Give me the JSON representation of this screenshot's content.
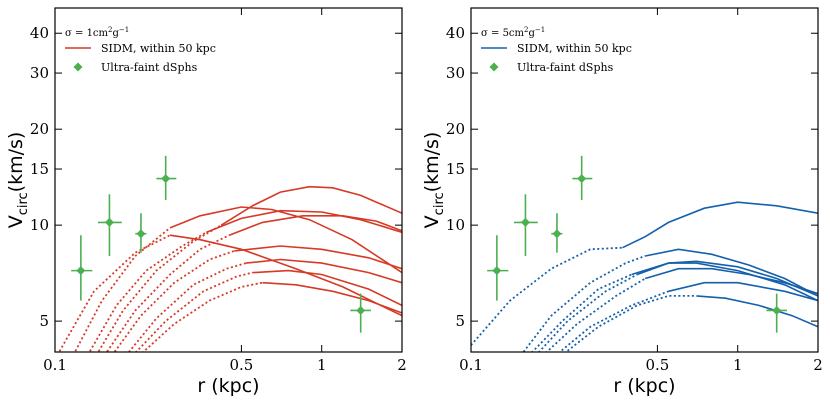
{
  "chart_data": [
    {
      "type": "line",
      "panel": "left",
      "xscale": "log",
      "yscale": "log",
      "xlim": [
        0.1,
        2
      ],
      "ylim": [
        4.0,
        48
      ],
      "xticks": [
        0.1,
        0.5,
        1,
        2
      ],
      "xtick_labels": [
        "0.1",
        "0.5",
        "1",
        "2"
      ],
      "yticks": [
        5,
        10,
        15,
        20,
        30,
        40
      ],
      "ytick_labels": [
        "5",
        "10",
        "15",
        "20",
        "30",
        "40"
      ],
      "xlabel": "r (kpc)",
      "ylabel_main": "V",
      "ylabel_sub": "circ",
      "ylabel_tail": "(km/s)",
      "legend_title_prefix": "σ = 1cm",
      "legend_title_sup1": "2",
      "legend_title_mid": "g",
      "legend_title_sup2": "−1",
      "line_color": "#d63a26",
      "point_color": "#4caf50",
      "legend": [
        {
          "label": "SIDM, within 50 kpc",
          "kind": "line"
        },
        {
          "label": "Ultra-faint dSphs",
          "kind": "marker"
        }
      ],
      "series": [
        {
          "name": "curve-1",
          "dotted": [
            [
              0.1,
              3.8
            ],
            [
              0.14,
              6.2
            ],
            [
              0.2,
              8.2
            ],
            [
              0.27,
              9.3
            ]
          ],
          "solid": [
            [
              0.27,
              9.3
            ],
            [
              0.35,
              9.0
            ],
            [
              0.5,
              8.4
            ],
            [
              0.8,
              7.3
            ],
            [
              1.2,
              6.4
            ],
            [
              2.0,
              5.2
            ]
          ]
        },
        {
          "name": "curve-2",
          "dotted": [
            [
              0.115,
              3.8
            ],
            [
              0.15,
              5.8
            ],
            [
              0.2,
              8.0
            ],
            [
              0.27,
              9.8
            ]
          ],
          "solid": [
            [
              0.27,
              9.8
            ],
            [
              0.35,
              10.7
            ],
            [
              0.5,
              11.4
            ],
            [
              0.65,
              11.2
            ],
            [
              0.9,
              10.4
            ],
            [
              1.3,
              9.0
            ],
            [
              2.0,
              7.1
            ]
          ]
        },
        {
          "name": "curve-3",
          "dotted": [
            [
              0.13,
              3.8
            ],
            [
              0.17,
              5.6
            ],
            [
              0.22,
              7.2
            ],
            [
              0.3,
              8.6
            ],
            [
              0.37,
              9.5
            ]
          ],
          "solid": [
            [
              0.37,
              9.5
            ],
            [
              0.5,
              10.5
            ],
            [
              0.7,
              11.1
            ],
            [
              1.0,
              11.0
            ],
            [
              1.4,
              10.4
            ],
            [
              2.0,
              9.5
            ]
          ]
        },
        {
          "name": "curve-4",
          "dotted": [
            [
              0.14,
              3.8
            ],
            [
              0.18,
              5.4
            ],
            [
              0.24,
              7.2
            ],
            [
              0.33,
              8.9
            ],
            [
              0.42,
              10.0
            ]
          ],
          "solid": [
            [
              0.42,
              10.0
            ],
            [
              0.55,
              11.5
            ],
            [
              0.7,
              12.7
            ],
            [
              0.9,
              13.2
            ],
            [
              1.1,
              13.1
            ],
            [
              1.4,
              12.4
            ],
            [
              2.0,
              10.9
            ]
          ]
        },
        {
          "name": "curve-5",
          "dotted": [
            [
              0.15,
              3.8
            ],
            [
              0.2,
              5.4
            ],
            [
              0.27,
              7.0
            ],
            [
              0.35,
              8.4
            ],
            [
              0.45,
              9.3
            ]
          ],
          "solid": [
            [
              0.45,
              9.3
            ],
            [
              0.6,
              10.2
            ],
            [
              0.85,
              10.7
            ],
            [
              1.2,
              10.7
            ],
            [
              1.6,
              10.3
            ],
            [
              2.0,
              9.6
            ]
          ]
        },
        {
          "name": "curve-6",
          "dotted": [
            [
              0.16,
              3.8
            ],
            [
              0.21,
              5.2
            ],
            [
              0.28,
              6.6
            ],
            [
              0.38,
              7.8
            ],
            [
              0.47,
              8.3
            ]
          ],
          "solid": [
            [
              0.47,
              8.3
            ],
            [
              0.7,
              8.6
            ],
            [
              1.0,
              8.4
            ],
            [
              1.5,
              7.9
            ],
            [
              2.0,
              7.3
            ]
          ]
        },
        {
          "name": "curve-7",
          "dotted": [
            [
              0.18,
              3.8
            ],
            [
              0.24,
              5.1
            ],
            [
              0.33,
              6.5
            ],
            [
              0.44,
              7.3
            ],
            [
              0.52,
              7.6
            ]
          ],
          "solid": [
            [
              0.52,
              7.6
            ],
            [
              0.7,
              7.8
            ],
            [
              1.0,
              7.6
            ],
            [
              1.5,
              7.1
            ],
            [
              2.0,
              6.6
            ]
          ]
        },
        {
          "name": "curve-8",
          "dotted": [
            [
              0.19,
              3.8
            ],
            [
              0.26,
              5.0
            ],
            [
              0.36,
              6.2
            ],
            [
              0.48,
              6.9
            ],
            [
              0.55,
              7.1
            ]
          ],
          "solid": [
            [
              0.55,
              7.1
            ],
            [
              0.75,
              7.2
            ],
            [
              1.0,
              7.0
            ],
            [
              1.5,
              6.3
            ],
            [
              2.0,
              5.6
            ]
          ]
        },
        {
          "name": "curve-9",
          "dotted": [
            [
              0.2,
              3.8
            ],
            [
              0.28,
              4.9
            ],
            [
              0.38,
              5.8
            ],
            [
              0.5,
              6.4
            ],
            [
              0.6,
              6.6
            ]
          ],
          "solid": [
            [
              0.6,
              6.6
            ],
            [
              0.8,
              6.5
            ],
            [
              1.1,
              6.2
            ],
            [
              1.5,
              5.8
            ],
            [
              2.0,
              5.3
            ]
          ]
        }
      ],
      "points": [
        {
          "name": "dsph-1",
          "r": 0.125,
          "v": 7.2,
          "v_lo": 5.8,
          "v_hi": 9.3,
          "r_lo": 0.115,
          "r_hi": 0.138
        },
        {
          "name": "dsph-2",
          "r": 0.16,
          "v": 10.2,
          "v_lo": 8.0,
          "v_hi": 12.5,
          "r_lo": 0.145,
          "r_hi": 0.178
        },
        {
          "name": "dsph-3",
          "r": 0.21,
          "v": 9.4,
          "v_lo": 8.2,
          "v_hi": 10.9,
          "r_lo": 0.2,
          "r_hi": 0.22
        },
        {
          "name": "dsph-4",
          "r": 0.26,
          "v": 14.0,
          "v_lo": 12.0,
          "v_hi": 16.5,
          "r_lo": 0.24,
          "r_hi": 0.285
        },
        {
          "name": "dsph-5",
          "r": 1.4,
          "v": 5.4,
          "v_lo": 4.6,
          "v_hi": 6.1,
          "r_lo": 1.28,
          "r_hi": 1.53
        }
      ]
    },
    {
      "type": "line",
      "panel": "right",
      "xscale": "log",
      "yscale": "log",
      "xlim": [
        0.1,
        2
      ],
      "ylim": [
        4.0,
        48
      ],
      "xticks": [
        0.1,
        0.5,
        1,
        2
      ],
      "xtick_labels": [
        "0.1",
        "0.5",
        "1",
        "2"
      ],
      "yticks": [
        5,
        10,
        15,
        20,
        30,
        40
      ],
      "ytick_labels": [
        "5",
        "10",
        "15",
        "20",
        "30",
        "40"
      ],
      "xlabel": "r (kpc)",
      "ylabel_main": "V",
      "ylabel_sub": "circ",
      "ylabel_tail": "(km/s)",
      "legend_title_prefix": "σ = 5cm",
      "legend_title_sup1": "2",
      "legend_title_mid": "g",
      "legend_title_sup2": "−1",
      "line_color": "#1560ad",
      "point_color": "#4caf50",
      "legend": [
        {
          "label": "SIDM, within 50 kpc",
          "kind": "line"
        },
        {
          "label": "Ultra-faint dSphs",
          "kind": "marker"
        }
      ],
      "series": [
        {
          "name": "curve-1",
          "dotted": [
            [
              0.1,
              4.2
            ],
            [
              0.14,
              5.8
            ],
            [
              0.2,
              7.3
            ],
            [
              0.28,
              8.4
            ],
            [
              0.37,
              8.5
            ]
          ],
          "solid": [
            [
              0.37,
              8.5
            ],
            [
              0.45,
              9.2
            ],
            [
              0.55,
              10.2
            ],
            [
              0.75,
              11.3
            ],
            [
              1.0,
              11.8
            ],
            [
              1.4,
              11.5
            ],
            [
              2.0,
              10.9
            ]
          ]
        },
        {
          "name": "curve-2",
          "dotted": [
            [
              0.15,
              3.8
            ],
            [
              0.2,
              5.2
            ],
            [
              0.28,
              6.6
            ],
            [
              0.38,
              7.6
            ],
            [
              0.45,
              8.0
            ]
          ],
          "solid": [
            [
              0.45,
              8.0
            ],
            [
              0.6,
              8.4
            ],
            [
              0.8,
              8.1
            ],
            [
              1.1,
              7.5
            ],
            [
              1.5,
              6.8
            ],
            [
              2.0,
              6.0
            ]
          ]
        },
        {
          "name": "curve-3",
          "dotted": [
            [
              0.16,
              3.8
            ],
            [
              0.22,
              5.0
            ],
            [
              0.3,
              6.3
            ],
            [
              0.4,
              7.0
            ]
          ],
          "solid": [
            [
              0.4,
              7.0
            ],
            [
              0.55,
              7.6
            ],
            [
              0.7,
              7.7
            ],
            [
              1.0,
              7.4
            ],
            [
              1.4,
              6.8
            ],
            [
              2.0,
              6.0
            ]
          ]
        },
        {
          "name": "curve-4",
          "dotted": [
            [
              0.17,
              3.8
            ],
            [
              0.23,
              5.0
            ],
            [
              0.32,
              6.2
            ],
            [
              0.42,
              7.0
            ]
          ],
          "solid": [
            [
              0.42,
              7.0
            ],
            [
              0.55,
              7.6
            ],
            [
              0.7,
              7.6
            ],
            [
              1.0,
              7.2
            ],
            [
              1.5,
              6.5
            ],
            [
              2.0,
              5.8
            ]
          ]
        },
        {
          "name": "curve-5",
          "dotted": [
            [
              0.18,
              3.8
            ],
            [
              0.25,
              4.9
            ],
            [
              0.35,
              6.0
            ],
            [
              0.45,
              6.8
            ]
          ],
          "solid": [
            [
              0.45,
              6.8
            ],
            [
              0.6,
              7.3
            ],
            [
              0.8,
              7.3
            ],
            [
              1.1,
              7.0
            ],
            [
              1.5,
              6.6
            ],
            [
              2.0,
              6.1
            ]
          ]
        },
        {
          "name": "curve-6",
          "dotted": [
            [
              0.2,
              3.8
            ],
            [
              0.28,
              4.8
            ],
            [
              0.4,
              5.6
            ],
            [
              0.55,
              6.2
            ]
          ],
          "solid": [
            [
              0.55,
              6.2
            ],
            [
              0.75,
              6.6
            ],
            [
              1.0,
              6.6
            ],
            [
              1.5,
              6.2
            ],
            [
              2.0,
              5.8
            ]
          ]
        },
        {
          "name": "curve-7",
          "dotted": [
            [
              0.21,
              3.8
            ],
            [
              0.3,
              4.8
            ],
            [
              0.42,
              5.6
            ],
            [
              0.55,
              6.0
            ],
            [
              0.7,
              6.0
            ]
          ],
          "solid": [
            [
              0.7,
              6.0
            ],
            [
              0.9,
              5.9
            ],
            [
              1.2,
              5.6
            ],
            [
              1.6,
              5.2
            ],
            [
              2.0,
              4.8
            ]
          ]
        }
      ],
      "points": [
        {
          "name": "dsph-1",
          "r": 0.125,
          "v": 7.2,
          "v_lo": 5.8,
          "v_hi": 9.3,
          "r_lo": 0.115,
          "r_hi": 0.138
        },
        {
          "name": "dsph-2",
          "r": 0.16,
          "v": 10.2,
          "v_lo": 8.0,
          "v_hi": 12.5,
          "r_lo": 0.145,
          "r_hi": 0.178
        },
        {
          "name": "dsph-3",
          "r": 0.21,
          "v": 9.4,
          "v_lo": 8.2,
          "v_hi": 10.9,
          "r_lo": 0.2,
          "r_hi": 0.22
        },
        {
          "name": "dsph-4",
          "r": 0.26,
          "v": 14.0,
          "v_lo": 12.0,
          "v_hi": 16.5,
          "r_lo": 0.24,
          "r_hi": 0.285
        },
        {
          "name": "dsph-5",
          "r": 1.4,
          "v": 5.4,
          "v_lo": 4.6,
          "v_hi": 6.1,
          "r_lo": 1.28,
          "r_hi": 1.53
        }
      ]
    }
  ]
}
